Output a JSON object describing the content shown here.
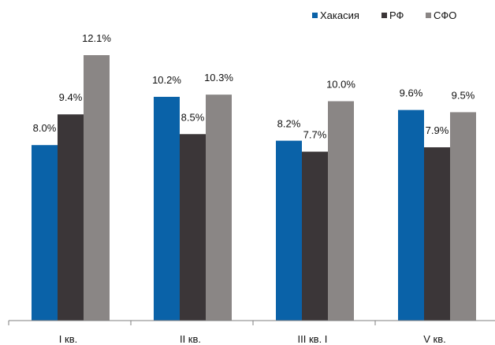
{
  "chart_data": {
    "type": "bar",
    "title": "",
    "xlabel": "",
    "ylabel": "",
    "categories": [
      "I кв.",
      "II кв.",
      "III кв. I",
      "V кв."
    ],
    "series": [
      {
        "name": "Хакасия",
        "color": "#0a62a8",
        "values": [
          8.0,
          10.2,
          8.2,
          9.6
        ],
        "labels": [
          "8.0%",
          "10.2%",
          "8.2%",
          "9.6%"
        ]
      },
      {
        "name": "РФ",
        "color": "#3b3638",
        "values": [
          9.4,
          8.5,
          7.7,
          7.9
        ],
        "labels": [
          "9.4%",
          "8.5%",
          "7.7%",
          "7.9%"
        ]
      },
      {
        "name": "СФО",
        "color": "#8a8685",
        "values": [
          12.1,
          10.3,
          10.0,
          9.5
        ],
        "labels": [
          "12.1%",
          "10.3%",
          "10.0%",
          "9.5%"
        ]
      }
    ],
    "value_format": "percent, one decimal",
    "grid": false,
    "legend_position": "top-right",
    "axis_color": "#7f7f7f"
  }
}
